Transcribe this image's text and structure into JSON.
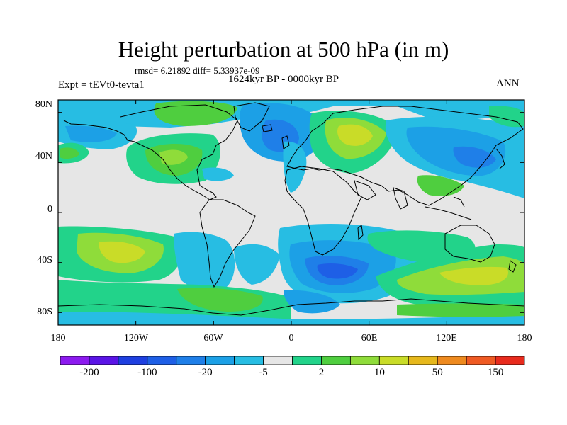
{
  "title": "Height perturbation at 500 hPa (in m)",
  "stats": "rmsd= 6.21892 diff= 5.33937e-09",
  "period": "1624kyr BP - 0000kyr BP",
  "expt": "Expt = tEVt0-tevta1",
  "season": "ANN",
  "map": {
    "lat_labels": [
      "80N",
      "40N",
      "0",
      "40S",
      "80S"
    ],
    "lon_labels": [
      "180",
      "120W",
      "60W",
      "0",
      "60E",
      "120E",
      "180"
    ]
  },
  "colorbar": {
    "labels": [
      "-200",
      "-100",
      "-20",
      "-5",
      "2",
      "10",
      "50",
      "150"
    ],
    "colors": [
      "#8c1aef",
      "#5a14e6",
      "#1e3fe0",
      "#1e5fe6",
      "#1f7fe8",
      "#1ca0e6",
      "#27bde3",
      "#e6e6e6",
      "#22d38a",
      "#4fce3f",
      "#8fdc3a",
      "#c9dc28",
      "#e6b81c",
      "#ee8a1f",
      "#ef5a23",
      "#e82b1d"
    ]
  }
}
